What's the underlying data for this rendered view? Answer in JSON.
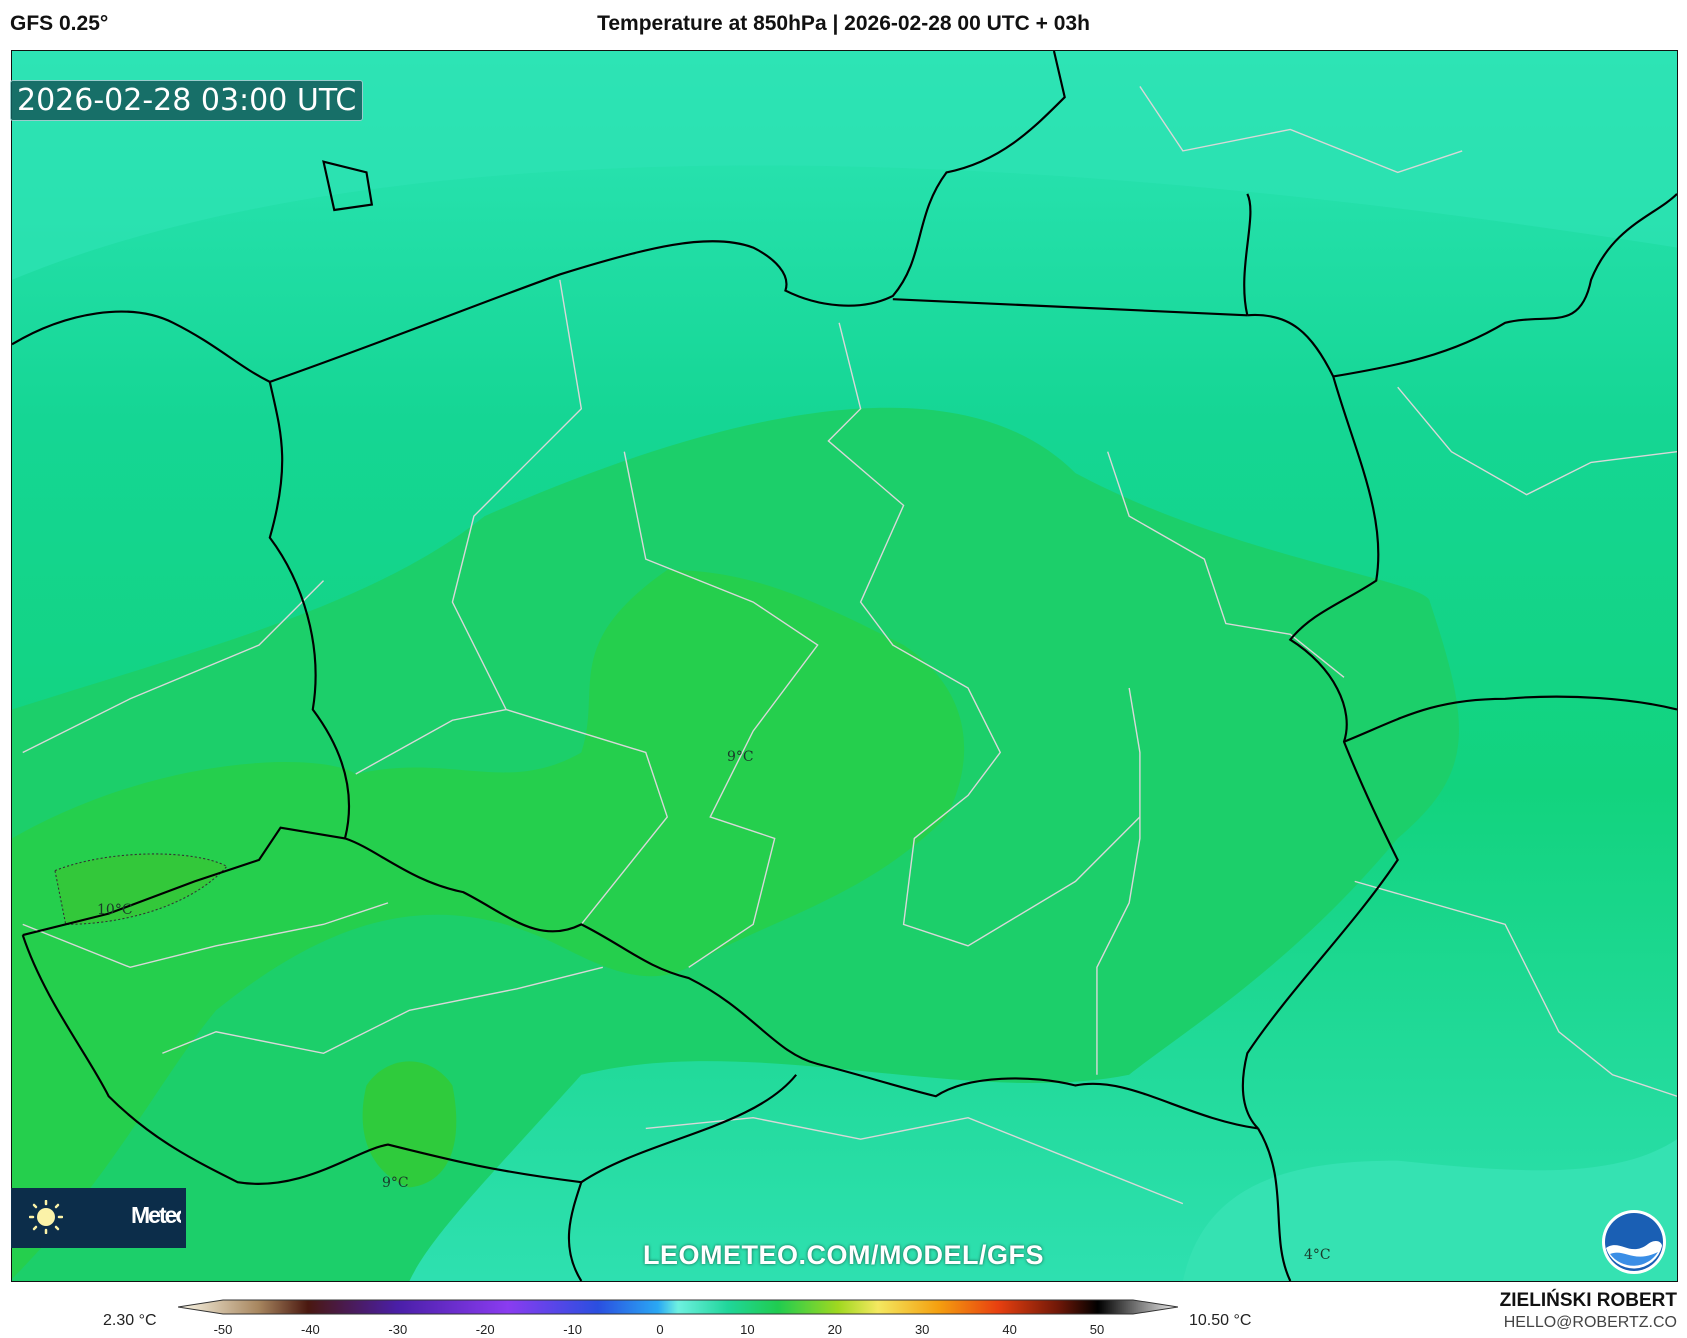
{
  "header": {
    "model": "GFS 0.25°",
    "title": "Temperature at 850hPa | 2026-02-28 00 UTC + 03h"
  },
  "map": {
    "valid_time": "2026-02-28 03:00 UTC",
    "contour_labels": [
      "9°C",
      "10°C",
      "9°C",
      "4°C"
    ],
    "watermark": "LEOMETEO.COM/MODEL/GFS",
    "logo_text": "Meteo",
    "logo_icon": "sun-icon",
    "agency_logo_icon": "noaa-logo-icon",
    "colors": {
      "cold_edge": "#2ee6b8",
      "mid": "#14d68c",
      "warm_core": "#22d257",
      "warmest": "#35cc3a",
      "border_country": "#000000",
      "border_region": "#d9d9d9"
    }
  },
  "colorbar": {
    "min_label": "2.30 °C",
    "max_label": "10.50 °C",
    "ticks": [
      "-50",
      "-40",
      "-30",
      "-20",
      "-10",
      "0",
      "10",
      "20",
      "30",
      "40",
      "50"
    ]
  },
  "footer": {
    "author": "ZIELIŃSKI ROBERT",
    "email": "HELLO@ROBERTZ.CO"
  }
}
